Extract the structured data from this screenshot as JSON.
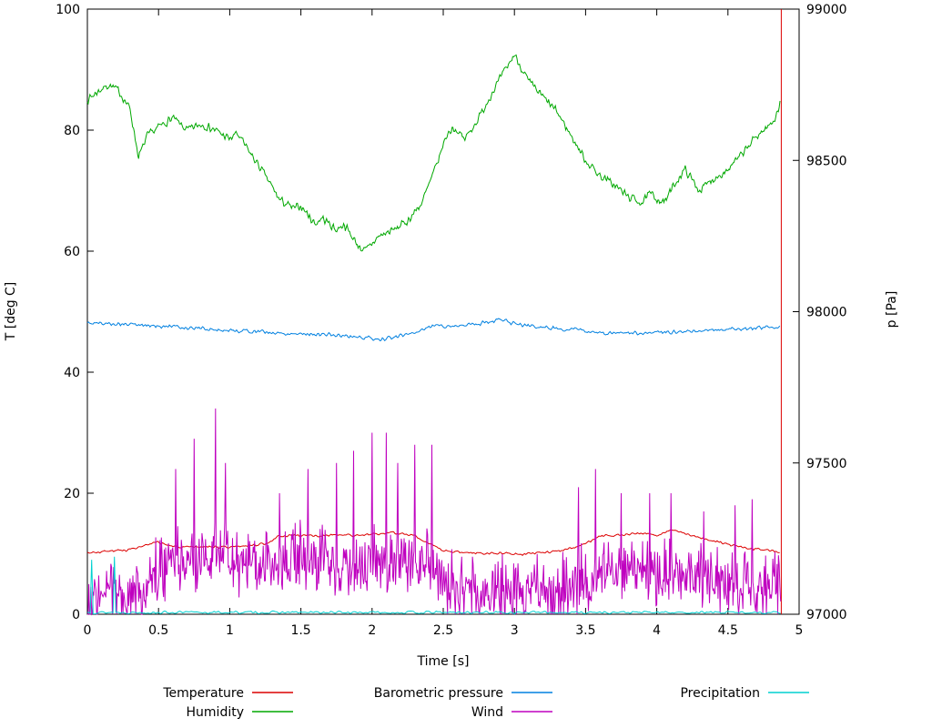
{
  "chart_data": {
    "type": "line",
    "title": "",
    "xlabel": "Time [s]",
    "ylabel_left": "T [deg C]",
    "ylabel_right": "p [Pa]",
    "xlim": [
      0,
      5
    ],
    "ylim_left": [
      0,
      100
    ],
    "ylim_right": [
      97000,
      99000
    ],
    "xticks": [
      0,
      0.5,
      1,
      1.5,
      2,
      2.5,
      3,
      3.5,
      4,
      4.5,
      5
    ],
    "yticks_left": [
      0,
      20,
      40,
      60,
      80,
      100
    ],
    "yticks_right": [
      97000,
      97500,
      98000,
      98500,
      99000
    ],
    "grid": false,
    "legend_position": "below",
    "legend_rows": [
      [
        "Temperature",
        "Barometric pressure",
        "Precipitation"
      ],
      [
        "Humidity",
        "Wind"
      ]
    ],
    "series": [
      {
        "name": "Temperature",
        "color": "#dc0000",
        "axis": "left",
        "noise": 0.25,
        "seed": 3,
        "step": 0.008,
        "anchors": [
          [
            0,
            10.2
          ],
          [
            0.15,
            10.4
          ],
          [
            0.3,
            10.7
          ],
          [
            0.45,
            11.6
          ],
          [
            0.5,
            11.9
          ],
          [
            0.6,
            11.2
          ],
          [
            0.7,
            11.0
          ],
          [
            0.85,
            11.2
          ],
          [
            1.0,
            11.1
          ],
          [
            1.15,
            11.4
          ],
          [
            1.25,
            11.7
          ],
          [
            1.35,
            12.9
          ],
          [
            1.45,
            13.1
          ],
          [
            1.6,
            12.9
          ],
          [
            1.75,
            13.1
          ],
          [
            1.9,
            13.0
          ],
          [
            2.05,
            13.3
          ],
          [
            2.15,
            13.4
          ],
          [
            2.3,
            13.1
          ],
          [
            2.4,
            11.6
          ],
          [
            2.5,
            10.5
          ],
          [
            2.65,
            10.2
          ],
          [
            2.8,
            10.1
          ],
          [
            2.95,
            10.2
          ],
          [
            3.05,
            9.9
          ],
          [
            3.2,
            10.2
          ],
          [
            3.35,
            10.6
          ],
          [
            3.5,
            11.7
          ],
          [
            3.6,
            12.9
          ],
          [
            3.75,
            13.1
          ],
          [
            3.9,
            13.4
          ],
          [
            4.0,
            13.1
          ],
          [
            4.1,
            13.9
          ],
          [
            4.2,
            13.3
          ],
          [
            4.35,
            12.4
          ],
          [
            4.5,
            11.5
          ],
          [
            4.65,
            10.9
          ],
          [
            4.8,
            10.5
          ],
          [
            4.87,
            10.3
          ]
        ],
        "vline": {
          "x": 4.875,
          "from": 0,
          "to": 100
        }
      },
      {
        "name": "Humidity",
        "color": "#00a800",
        "axis": "left",
        "noise": 0.8,
        "seed": 7,
        "step": 0.006,
        "anchors": [
          [
            0,
            85
          ],
          [
            0.08,
            86.5
          ],
          [
            0.15,
            87.5
          ],
          [
            0.22,
            86.5
          ],
          [
            0.3,
            83.5
          ],
          [
            0.36,
            75.5
          ],
          [
            0.42,
            79
          ],
          [
            0.5,
            80.5
          ],
          [
            0.6,
            82
          ],
          [
            0.7,
            80
          ],
          [
            0.8,
            81
          ],
          [
            0.9,
            80
          ],
          [
            1.0,
            78.5
          ],
          [
            1.05,
            79.5
          ],
          [
            1.15,
            76
          ],
          [
            1.25,
            72.5
          ],
          [
            1.35,
            68.5
          ],
          [
            1.45,
            67
          ],
          [
            1.5,
            67.5
          ],
          [
            1.6,
            64.5
          ],
          [
            1.65,
            65.5
          ],
          [
            1.75,
            63.5
          ],
          [
            1.8,
            64.5
          ],
          [
            1.9,
            61
          ],
          [
            1.95,
            60
          ],
          [
            2.05,
            62.5
          ],
          [
            2.15,
            63.5
          ],
          [
            2.25,
            65
          ],
          [
            2.35,
            68
          ],
          [
            2.45,
            74
          ],
          [
            2.52,
            79
          ],
          [
            2.57,
            80.5
          ],
          [
            2.65,
            78.5
          ],
          [
            2.75,
            82
          ],
          [
            2.85,
            86.5
          ],
          [
            2.95,
            90.5
          ],
          [
            3.0,
            92.5
          ],
          [
            3.1,
            88
          ],
          [
            3.2,
            85.5
          ],
          [
            3.3,
            83
          ],
          [
            3.4,
            79
          ],
          [
            3.5,
            75
          ],
          [
            3.6,
            72.5
          ],
          [
            3.7,
            71
          ],
          [
            3.8,
            69
          ],
          [
            3.9,
            68
          ],
          [
            3.95,
            69.5
          ],
          [
            4.05,
            68
          ],
          [
            4.15,
            72
          ],
          [
            4.2,
            73.5
          ],
          [
            4.3,
            70
          ],
          [
            4.4,
            72
          ],
          [
            4.5,
            73.5
          ],
          [
            4.6,
            76
          ],
          [
            4.7,
            79
          ],
          [
            4.78,
            80.5
          ],
          [
            4.83,
            82
          ],
          [
            4.87,
            84.5
          ]
        ]
      },
      {
        "name": "Barometric pressure",
        "color": "#0080e0",
        "axis": "right",
        "noise": 8,
        "seed": 5,
        "step": 0.008,
        "anchors": [
          [
            0,
            97962
          ],
          [
            0.2,
            97960
          ],
          [
            0.4,
            97955
          ],
          [
            0.6,
            97950
          ],
          [
            0.8,
            97945
          ],
          [
            0.9,
            97940
          ],
          [
            1.0,
            97938
          ],
          [
            1.2,
            97935
          ],
          [
            1.35,
            97928
          ],
          [
            1.5,
            97928
          ],
          [
            1.7,
            97924
          ],
          [
            1.9,
            97916
          ],
          [
            2.0,
            97912
          ],
          [
            2.05,
            97908
          ],
          [
            2.15,
            97914
          ],
          [
            2.3,
            97932
          ],
          [
            2.4,
            97950
          ],
          [
            2.45,
            97955
          ],
          [
            2.55,
            97952
          ],
          [
            2.7,
            97958
          ],
          [
            2.85,
            97968
          ],
          [
            2.9,
            97974
          ],
          [
            3.0,
            97960
          ],
          [
            3.15,
            97950
          ],
          [
            3.3,
            97945
          ],
          [
            3.45,
            97940
          ],
          [
            3.6,
            97930
          ],
          [
            3.65,
            97926
          ],
          [
            3.75,
            97931
          ],
          [
            3.85,
            97929
          ],
          [
            3.95,
            97927
          ],
          [
            4.1,
            97933
          ],
          [
            4.25,
            97937
          ],
          [
            4.4,
            97940
          ],
          [
            4.55,
            97943
          ],
          [
            4.7,
            97946
          ],
          [
            4.87,
            97951
          ]
        ]
      },
      {
        "name": "Wind",
        "color": "#bf00bf",
        "axis": "left",
        "mode": "spiky",
        "spread": 7,
        "seed": 9,
        "step": 0.005,
        "clamp": [
          0,
          35
        ],
        "anchors": [
          [
            0,
            2.5
          ],
          [
            0.2,
            3
          ],
          [
            0.35,
            3
          ],
          [
            0.45,
            6
          ],
          [
            0.55,
            8
          ],
          [
            0.7,
            8.5
          ],
          [
            0.9,
            9.5
          ],
          [
            1.1,
            8
          ],
          [
            1.3,
            8
          ],
          [
            1.5,
            9
          ],
          [
            1.7,
            8.5
          ],
          [
            1.9,
            8
          ],
          [
            2.1,
            9
          ],
          [
            2.3,
            8
          ],
          [
            2.45,
            7.5
          ],
          [
            2.55,
            5
          ],
          [
            2.7,
            4
          ],
          [
            2.9,
            3.5
          ],
          [
            3.1,
            4
          ],
          [
            3.3,
            3
          ],
          [
            3.45,
            6
          ],
          [
            3.6,
            7
          ],
          [
            3.8,
            7.5
          ],
          [
            4.0,
            7.5
          ],
          [
            4.2,
            7
          ],
          [
            4.4,
            6
          ],
          [
            4.6,
            5
          ],
          [
            4.87,
            4.5
          ]
        ],
        "spikes": [
          [
            0.62,
            24
          ],
          [
            0.75,
            29
          ],
          [
            0.9,
            34
          ],
          [
            0.97,
            25
          ],
          [
            1.35,
            20
          ],
          [
            1.55,
            24
          ],
          [
            1.75,
            25
          ],
          [
            1.87,
            27
          ],
          [
            2.0,
            30
          ],
          [
            2.1,
            30
          ],
          [
            2.18,
            25
          ],
          [
            2.3,
            28
          ],
          [
            2.42,
            28
          ],
          [
            3.45,
            21
          ],
          [
            3.57,
            24
          ],
          [
            3.75,
            20
          ],
          [
            3.95,
            20
          ],
          [
            4.1,
            20
          ],
          [
            4.33,
            17
          ],
          [
            4.55,
            18
          ],
          [
            4.67,
            19
          ]
        ]
      },
      {
        "name": "Precipitation",
        "color": "#00d0d0",
        "axis": "left",
        "noise": 0.25,
        "seed": 13,
        "step": 0.01,
        "clamp": [
          0,
          100
        ],
        "anchors": [
          [
            0,
            0.3
          ],
          [
            4.87,
            0.3
          ]
        ],
        "spikes": [
          [
            0.03,
            9
          ],
          [
            0.19,
            9.5
          ]
        ]
      }
    ]
  }
}
